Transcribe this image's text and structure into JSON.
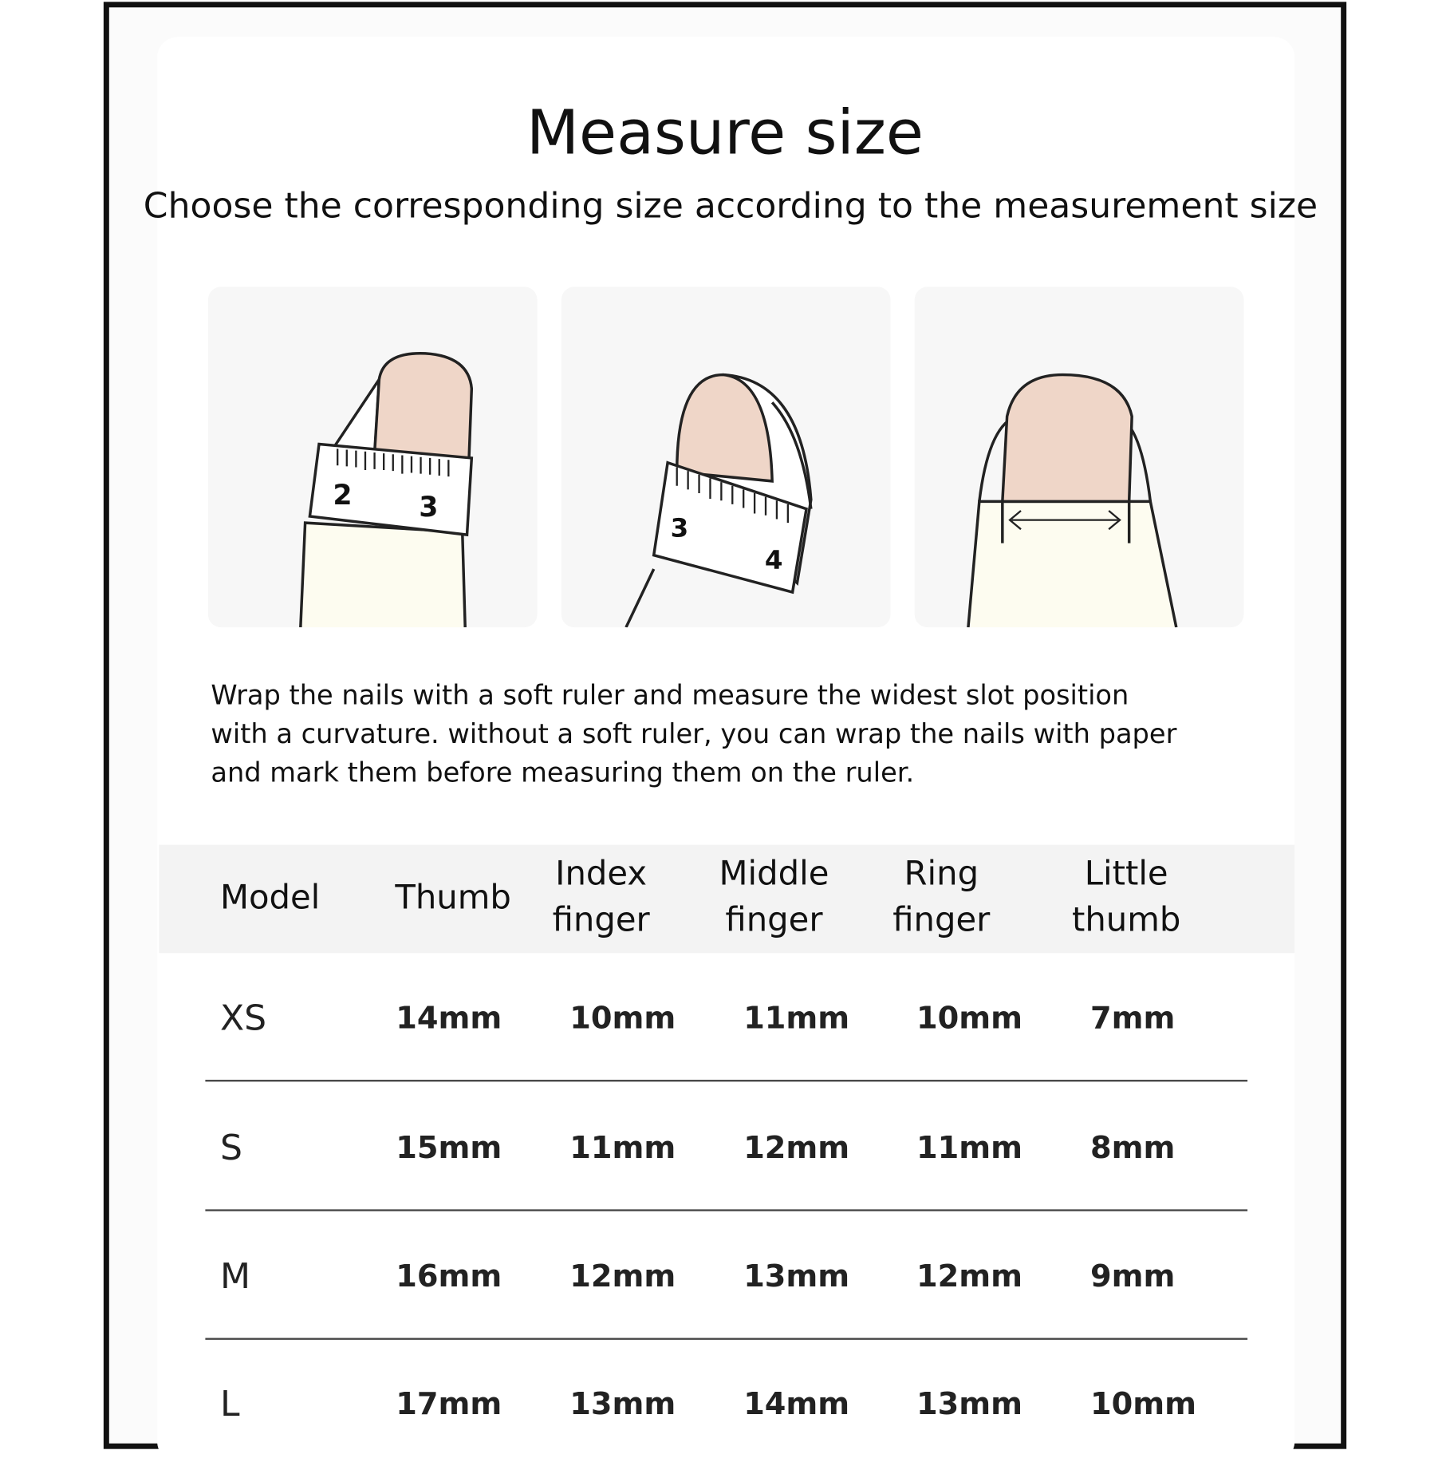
{
  "title": "Measure size",
  "subtitle": "Choose the corresponding size according to the measurement size",
  "illustrations": [
    {
      "name": "thumb-ruler",
      "labels": [
        "2",
        "3"
      ]
    },
    {
      "name": "finger-ruler",
      "labels": [
        "3",
        "4"
      ]
    },
    {
      "name": "nail-width-arrow",
      "labels": []
    }
  ],
  "colors": {
    "nail": "#efd6c8",
    "skin": "#fdfcf0",
    "frame": "#111111",
    "header_bg": "#f3f3f3"
  },
  "instructions": [
    "Wrap the nails with a soft ruler and measure the widest slot position",
    "with a curvature. without a soft ruler, you can wrap the nails with paper",
    "and mark them before measuring them on the ruler."
  ],
  "table": {
    "headers": [
      [
        "Model"
      ],
      [
        "Thumb"
      ],
      [
        "Index",
        "finger"
      ],
      [
        "Middle",
        "finger"
      ],
      [
        "Ring",
        "finger"
      ],
      [
        "Little",
        "thumb"
      ]
    ],
    "rows": [
      [
        "XS",
        "14mm",
        "10mm",
        "11mm",
        "10mm",
        "7mm"
      ],
      [
        "S",
        "15mm",
        "11mm",
        "12mm",
        "11mm",
        "8mm"
      ],
      [
        "M",
        "16mm",
        "12mm",
        "13mm",
        "12mm",
        "9mm"
      ],
      [
        "L",
        "17mm",
        "13mm",
        "14mm",
        "13mm",
        "10mm"
      ]
    ]
  }
}
